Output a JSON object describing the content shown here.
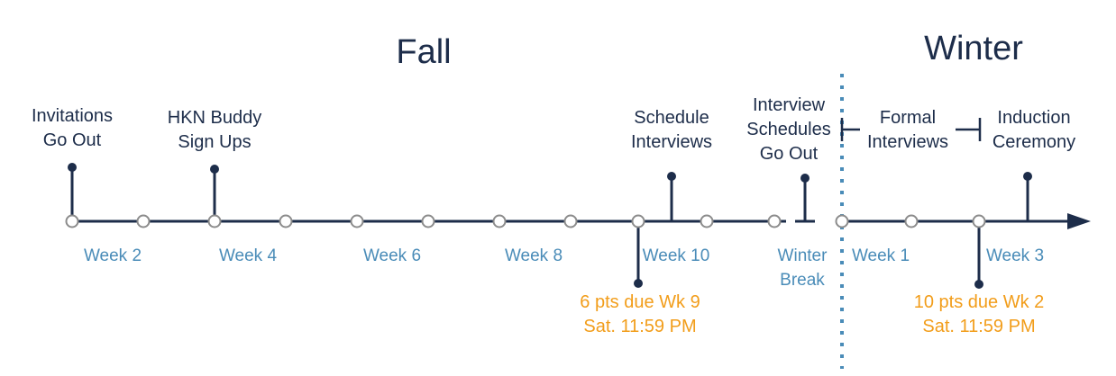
{
  "colors": {
    "line": "#1d2d4a",
    "node_fill": "#ffffff",
    "node_stroke": "#8c8c8c",
    "week_label": "#4a8cb8",
    "deadline": "#f29d1a",
    "divider": "#4a8cb8"
  },
  "seasons": {
    "fall": "Fall",
    "winter": "Winter"
  },
  "events": {
    "invitations": [
      "Invitations",
      "Go Out"
    ],
    "buddy": [
      "HKN Buddy",
      "Sign Ups"
    ],
    "schedule": [
      "Schedule",
      "Interviews"
    ],
    "schedules_out": [
      "Interview",
      "Schedules",
      "Go Out"
    ],
    "formal": [
      "Formal",
      "Interviews"
    ],
    "induction": [
      "Induction",
      "Ceremony"
    ]
  },
  "weeks": {
    "fall_w2": "Week 2",
    "fall_w4": "Week 4",
    "fall_w6": "Week 6",
    "fall_w8": "Week 8",
    "fall_w10": "Week 10",
    "break": [
      "Winter",
      "Break"
    ],
    "winter_w1": "Week 1",
    "winter_w3": "Week 3"
  },
  "deadlines": {
    "fall": [
      "6 pts due Wk 9",
      "Sat. 11:59 PM"
    ],
    "winter": [
      "10 pts due Wk 2",
      "Sat. 11:59 PM"
    ]
  }
}
